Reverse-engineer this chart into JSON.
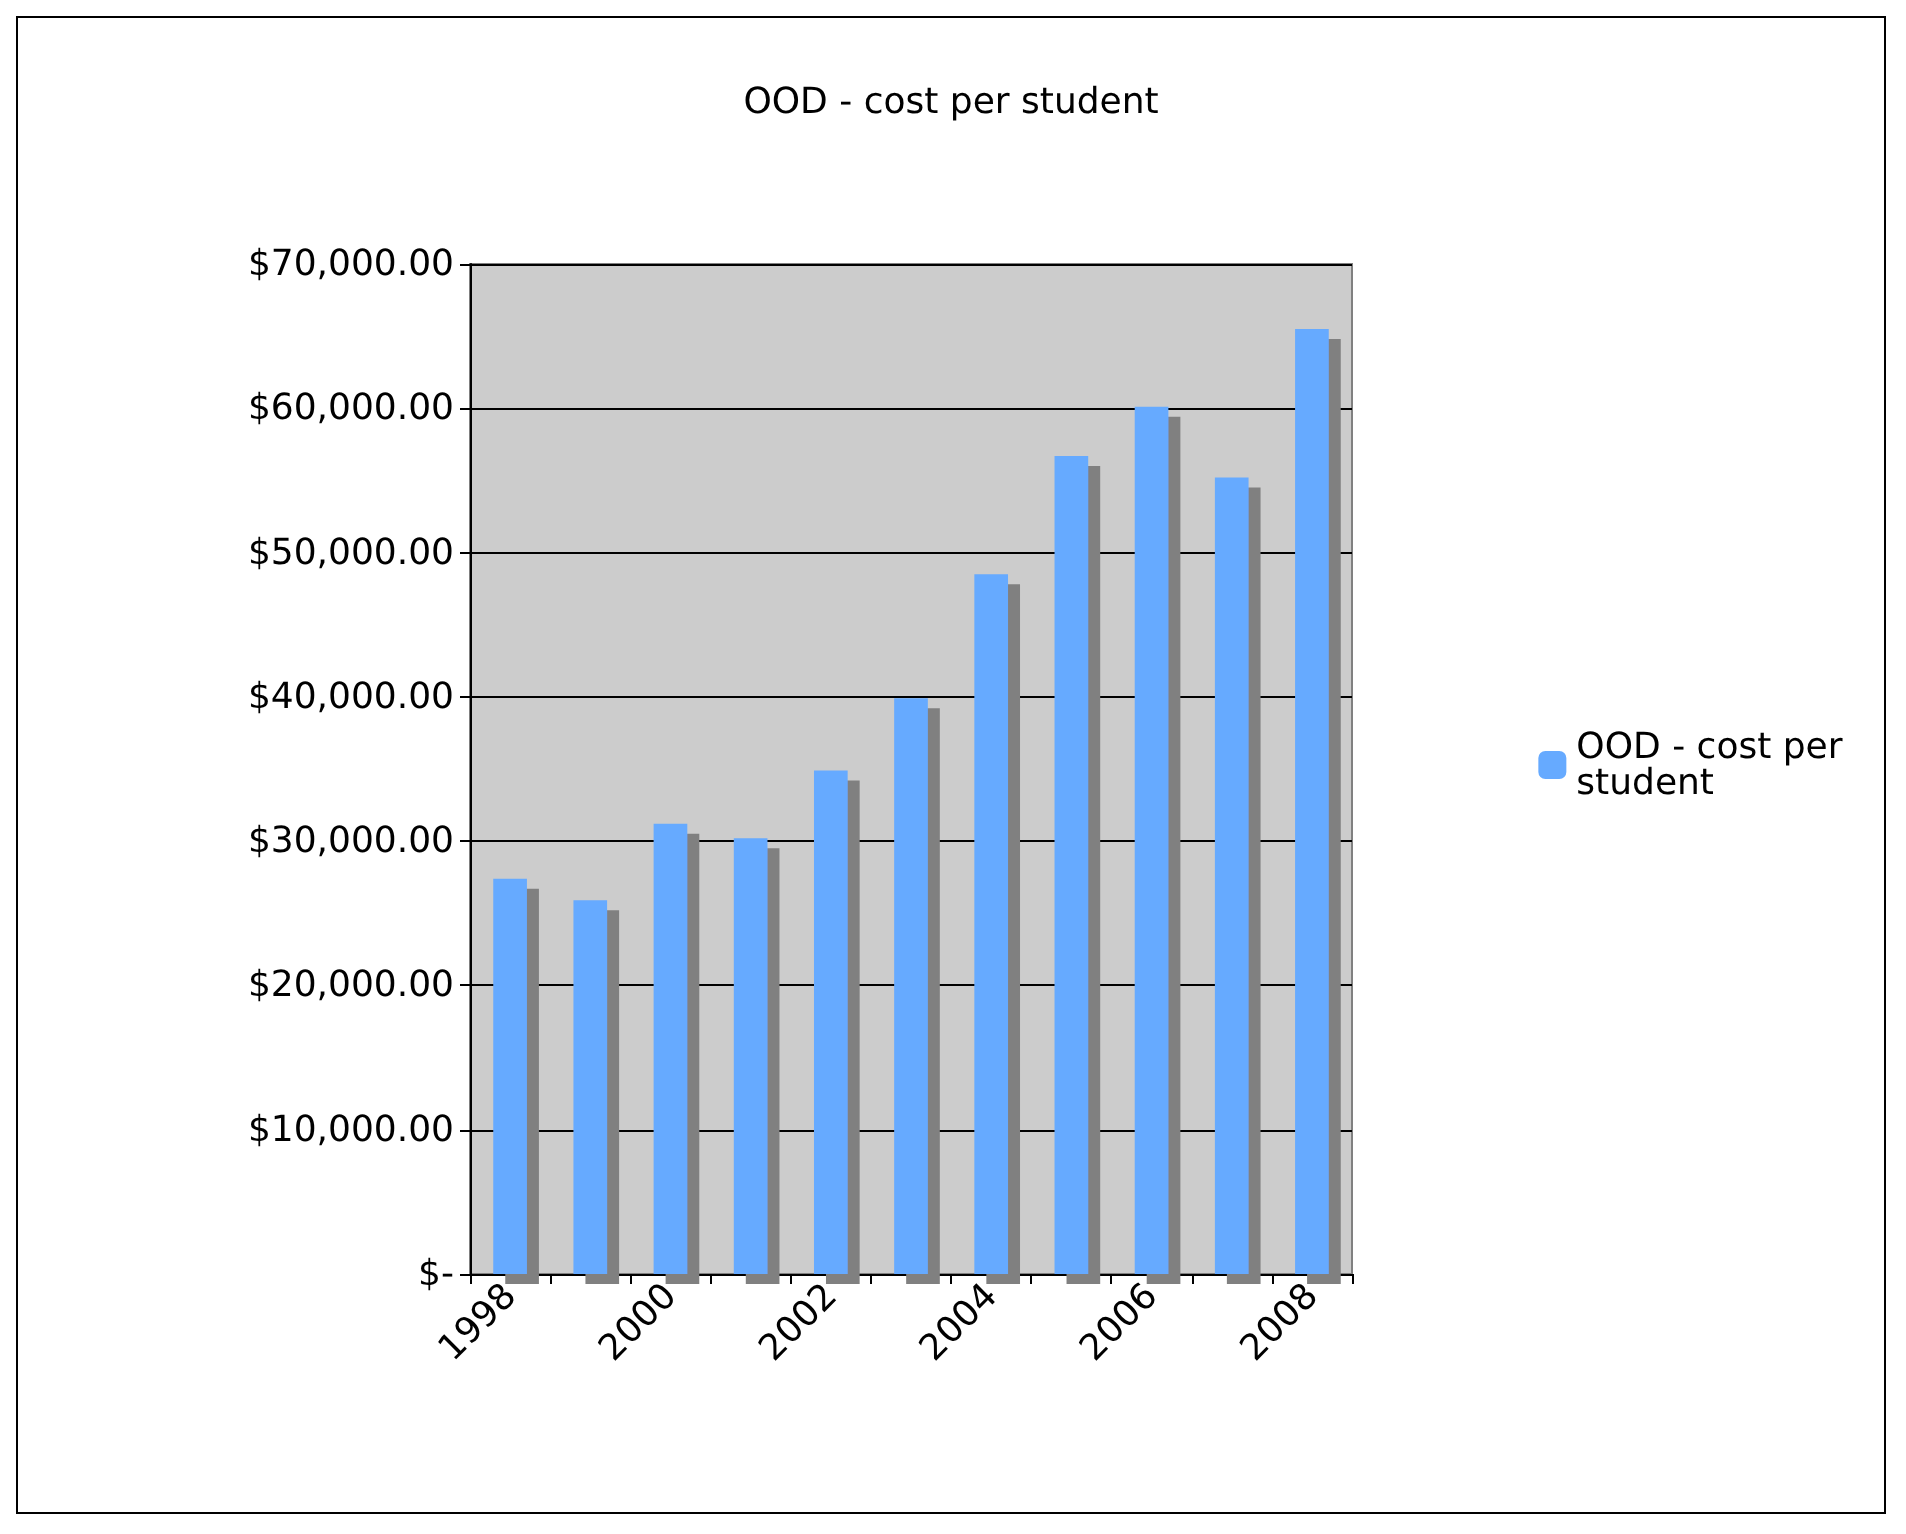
{
  "chart_data": {
    "type": "bar",
    "title": "OOD - cost per student",
    "categories": [
      "1998",
      null,
      "2000",
      null,
      "2002",
      null,
      "2004",
      null,
      "2006",
      null,
      "2008"
    ],
    "series": [
      {
        "name": "OOD - cost per student",
        "color": "#66aaff",
        "values": [
          27400,
          25900,
          31200,
          30200,
          34900,
          39900,
          48500,
          56700,
          60100,
          55200,
          65500
        ]
      }
    ],
    "ylim": [
      0,
      70000
    ],
    "yticks": [
      {
        "value": 0,
        "label": "$-"
      },
      {
        "value": 10000,
        "label": "$10,000.00"
      },
      {
        "value": 20000,
        "label": "$20,000.00"
      },
      {
        "value": 30000,
        "label": "$30,000.00"
      },
      {
        "value": 40000,
        "label": "$40,000.00"
      },
      {
        "value": 50000,
        "label": "$50,000.00"
      },
      {
        "value": 60000,
        "label": "$60,000.00"
      },
      {
        "value": 70000,
        "label": "$70,000.00"
      }
    ],
    "grid": "y",
    "legend": "right"
  }
}
